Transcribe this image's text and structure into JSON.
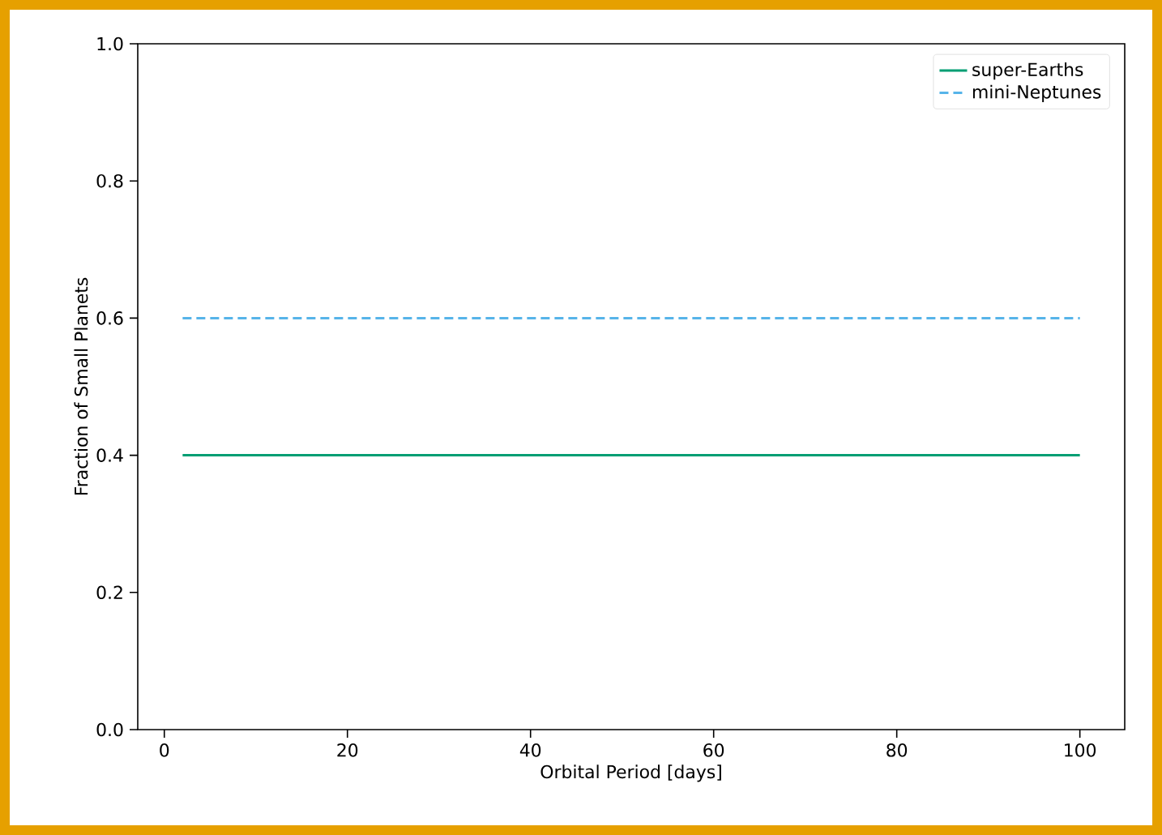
{
  "chart_data": {
    "type": "line",
    "xlabel": "Orbital Period [days]",
    "ylabel": "Fraction of Small Planets",
    "x": [
      2,
      100
    ],
    "series": [
      {
        "name": "super-Earths",
        "color": "#009e73",
        "values": [
          0.4,
          0.4
        ],
        "line_style": "solid"
      },
      {
        "name": "mini-Neptunes",
        "color": "#56b4e9",
        "values": [
          0.6,
          0.6
        ],
        "line_style": "dashed"
      }
    ],
    "xlim": [
      -2.9,
      104.9
    ],
    "ylim": [
      0,
      1
    ],
    "xticks": [
      0,
      20,
      40,
      60,
      80,
      100
    ],
    "yticks": [
      {
        "value": 0,
        "label": "0.0"
      },
      {
        "value": 0.2,
        "label": "0.2"
      },
      {
        "value": 0.4,
        "label": "0.4"
      },
      {
        "value": 0.6,
        "label": "0.6"
      },
      {
        "value": 0.8,
        "label": "0.8"
      },
      {
        "value": 1,
        "label": "1.0"
      }
    ],
    "grid": false,
    "legend": "top right",
    "marker": "none"
  }
}
